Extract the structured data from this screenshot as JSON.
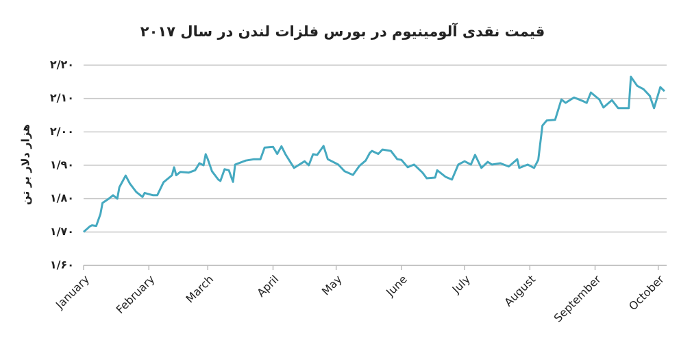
{
  "chart_data": {
    "type": "line",
    "title": "قیمت نقدی آلومینیوم در بورس فلزات لندن در سال ۲۰۱۷",
    "y_label": "هزار دلار بر تن",
    "x": [
      1,
      4,
      5,
      7,
      9,
      10,
      13,
      15,
      17,
      18,
      21,
      23,
      26,
      29,
      30,
      34,
      36,
      39,
      43,
      44,
      45,
      47,
      51,
      54,
      56,
      58,
      59,
      60,
      62,
      65,
      66,
      68,
      70,
      72,
      73,
      78,
      82,
      85,
      87,
      91,
      93,
      95,
      97,
      101,
      106,
      108,
      110,
      112,
      115,
      117,
      122,
      125,
      129,
      132,
      135,
      137,
      138,
      141,
      143,
      147,
      150,
      152,
      155,
      158,
      162,
      164,
      168,
      169,
      173,
      176,
      179,
      182,
      185,
      187,
      190,
      193,
      195,
      199,
      203,
      207,
      208,
      212,
      215,
      217,
      219,
      221,
      225,
      228,
      230,
      234,
      238,
      240,
      242,
      246,
      248,
      252,
      255,
      260,
      261,
      264,
      267,
      270,
      272,
      275,
      277
    ],
    "series": [
      {
        "color": "#45a9c0",
        "values": [
          1.7,
          1.717,
          1.72,
          1.718,
          1.754,
          1.787,
          1.8,
          1.81,
          1.8,
          1.834,
          1.869,
          1.845,
          1.82,
          1.805,
          1.817,
          1.81,
          1.81,
          1.849,
          1.87,
          1.894,
          1.87,
          1.88,
          1.878,
          1.885,
          1.906,
          1.9,
          1.933,
          1.918,
          1.882,
          1.857,
          1.853,
          1.888,
          1.885,
          1.85,
          1.902,
          1.914,
          1.918,
          1.918,
          1.953,
          1.955,
          1.934,
          1.957,
          1.932,
          1.892,
          1.912,
          1.9,
          1.933,
          1.931,
          1.958,
          1.918,
          1.902,
          1.882,
          1.871,
          1.898,
          1.914,
          1.937,
          1.943,
          1.934,
          1.947,
          1.943,
          1.918,
          1.916,
          1.894,
          1.902,
          1.878,
          1.861,
          1.863,
          1.885,
          1.865,
          1.857,
          1.902,
          1.912,
          1.902,
          1.931,
          1.892,
          1.91,
          1.902,
          1.906,
          1.896,
          1.918,
          1.892,
          1.902,
          1.892,
          1.916,
          2.019,
          2.034,
          2.036,
          2.097,
          2.087,
          2.103,
          2.093,
          2.087,
          2.118,
          2.097,
          2.073,
          2.095,
          2.071,
          2.071,
          2.165,
          2.138,
          2.128,
          2.108,
          2.071,
          2.134,
          2.122
        ]
      }
    ],
    "xlim": [
      1,
      278
    ],
    "xticks": [
      {
        "value": 1,
        "label": "January"
      },
      {
        "value": 32,
        "label": "February"
      },
      {
        "value": 60,
        "label": "March"
      },
      {
        "value": 91,
        "label": "April"
      },
      {
        "value": 121,
        "label": "May"
      },
      {
        "value": 152,
        "label": "June"
      },
      {
        "value": 182,
        "label": "July"
      },
      {
        "value": 213,
        "label": "August"
      },
      {
        "value": 244,
        "label": "September"
      },
      {
        "value": 274,
        "label": "October"
      }
    ],
    "ylim": [
      1.6,
      2.2
    ],
    "yticks": [
      {
        "value": 1.6,
        "label": "۱/۶۰"
      },
      {
        "value": 1.7,
        "label": "۱/۷۰"
      },
      {
        "value": 1.8,
        "label": "۱/۸۰"
      },
      {
        "value": 1.9,
        "label": "۱/۹۰"
      },
      {
        "value": 2.0,
        "label": "۲/۰۰"
      },
      {
        "value": 2.1,
        "label": "۲/۱۰"
      },
      {
        "value": 2.2,
        "label": "۲/۲۰"
      }
    ],
    "grid": true
  }
}
